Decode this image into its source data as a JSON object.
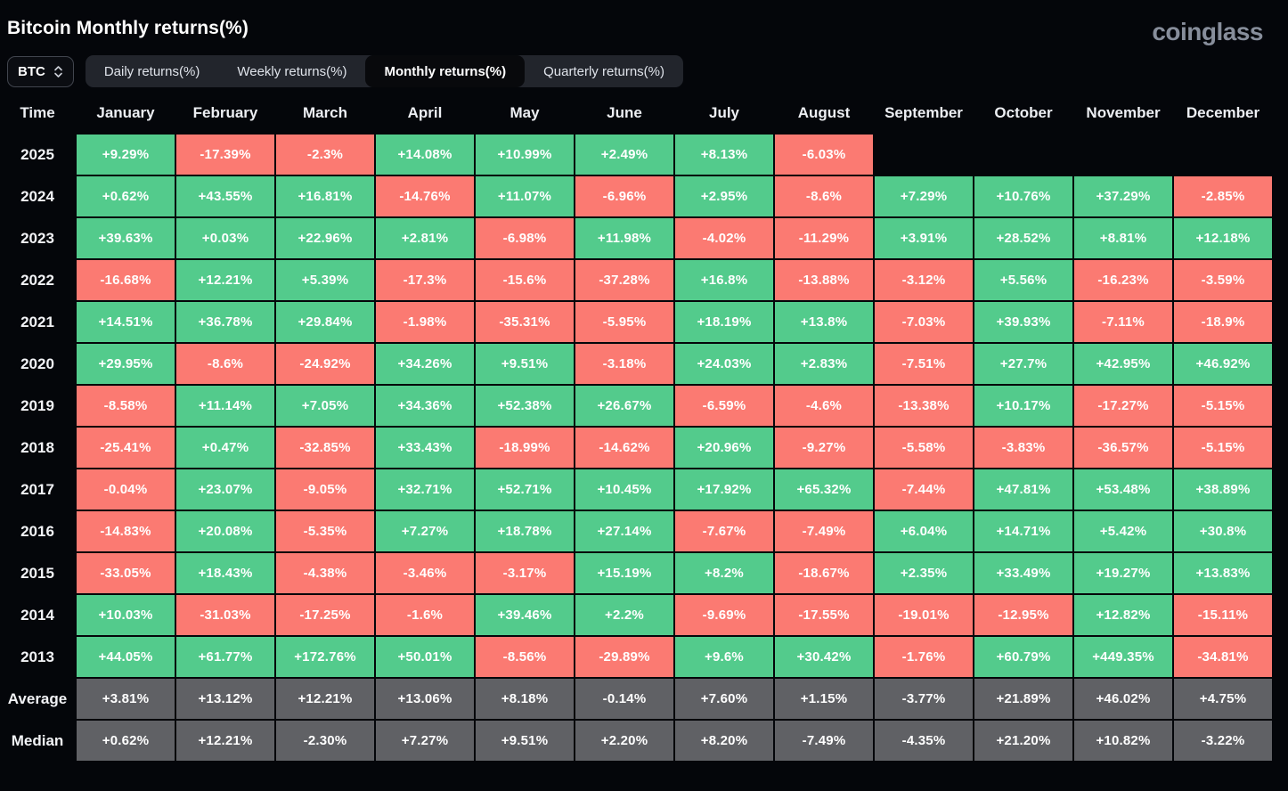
{
  "header": {
    "title": "Bitcoin Monthly returns(%)",
    "logo": "coinglass"
  },
  "controls": {
    "symbol_select": {
      "value": "BTC"
    },
    "tabs": [
      {
        "label": "Daily returns(%)",
        "active": false
      },
      {
        "label": "Weekly returns(%)",
        "active": false
      },
      {
        "label": "Monthly returns(%)",
        "active": true
      },
      {
        "label": "Quarterly returns(%)",
        "active": false
      }
    ]
  },
  "colors": {
    "background": "#04060a",
    "positive": "#53cb8c",
    "negative": "#fb7a72",
    "summary": "#606165"
  },
  "chart_data": {
    "type": "heatmap",
    "title": "Bitcoin Monthly returns(%)",
    "columns": [
      "Time",
      "January",
      "February",
      "March",
      "April",
      "May",
      "June",
      "July",
      "August",
      "September",
      "October",
      "November",
      "December"
    ],
    "rows": [
      {
        "label": "2025",
        "type": "year",
        "values": [
          "+9.29%",
          "-17.39%",
          "-2.3%",
          "+14.08%",
          "+10.99%",
          "+2.49%",
          "+8.13%",
          "-6.03%",
          null,
          null,
          null,
          null
        ]
      },
      {
        "label": "2024",
        "type": "year",
        "values": [
          "+0.62%",
          "+43.55%",
          "+16.81%",
          "-14.76%",
          "+11.07%",
          "-6.96%",
          "+2.95%",
          "-8.6%",
          "+7.29%",
          "+10.76%",
          "+37.29%",
          "-2.85%"
        ]
      },
      {
        "label": "2023",
        "type": "year",
        "values": [
          "+39.63%",
          "+0.03%",
          "+22.96%",
          "+2.81%",
          "-6.98%",
          "+11.98%",
          "-4.02%",
          "-11.29%",
          "+3.91%",
          "+28.52%",
          "+8.81%",
          "+12.18%"
        ]
      },
      {
        "label": "2022",
        "type": "year",
        "values": [
          "-16.68%",
          "+12.21%",
          "+5.39%",
          "-17.3%",
          "-15.6%",
          "-37.28%",
          "+16.8%",
          "-13.88%",
          "-3.12%",
          "+5.56%",
          "-16.23%",
          "-3.59%"
        ]
      },
      {
        "label": "2021",
        "type": "year",
        "values": [
          "+14.51%",
          "+36.78%",
          "+29.84%",
          "-1.98%",
          "-35.31%",
          "-5.95%",
          "+18.19%",
          "+13.8%",
          "-7.03%",
          "+39.93%",
          "-7.11%",
          "-18.9%"
        ]
      },
      {
        "label": "2020",
        "type": "year",
        "values": [
          "+29.95%",
          "-8.6%",
          "-24.92%",
          "+34.26%",
          "+9.51%",
          "-3.18%",
          "+24.03%",
          "+2.83%",
          "-7.51%",
          "+27.7%",
          "+42.95%",
          "+46.92%"
        ]
      },
      {
        "label": "2019",
        "type": "year",
        "values": [
          "-8.58%",
          "+11.14%",
          "+7.05%",
          "+34.36%",
          "+52.38%",
          "+26.67%",
          "-6.59%",
          "-4.6%",
          "-13.38%",
          "+10.17%",
          "-17.27%",
          "-5.15%"
        ]
      },
      {
        "label": "2018",
        "type": "year",
        "values": [
          "-25.41%",
          "+0.47%",
          "-32.85%",
          "+33.43%",
          "-18.99%",
          "-14.62%",
          "+20.96%",
          "-9.27%",
          "-5.58%",
          "-3.83%",
          "-36.57%",
          "-5.15%"
        ]
      },
      {
        "label": "2017",
        "type": "year",
        "values": [
          "-0.04%",
          "+23.07%",
          "-9.05%",
          "+32.71%",
          "+52.71%",
          "+10.45%",
          "+17.92%",
          "+65.32%",
          "-7.44%",
          "+47.81%",
          "+53.48%",
          "+38.89%"
        ]
      },
      {
        "label": "2016",
        "type": "year",
        "values": [
          "-14.83%",
          "+20.08%",
          "-5.35%",
          "+7.27%",
          "+18.78%",
          "+27.14%",
          "-7.67%",
          "-7.49%",
          "+6.04%",
          "+14.71%",
          "+5.42%",
          "+30.8%"
        ]
      },
      {
        "label": "2015",
        "type": "year",
        "values": [
          "-33.05%",
          "+18.43%",
          "-4.38%",
          "-3.46%",
          "-3.17%",
          "+15.19%",
          "+8.2%",
          "-18.67%",
          "+2.35%",
          "+33.49%",
          "+19.27%",
          "+13.83%"
        ]
      },
      {
        "label": "2014",
        "type": "year",
        "values": [
          "+10.03%",
          "-31.03%",
          "-17.25%",
          "-1.6%",
          "+39.46%",
          "+2.2%",
          "-9.69%",
          "-17.55%",
          "-19.01%",
          "-12.95%",
          "+12.82%",
          "-15.11%"
        ]
      },
      {
        "label": "2013",
        "type": "year",
        "values": [
          "+44.05%",
          "+61.77%",
          "+172.76%",
          "+50.01%",
          "-8.56%",
          "-29.89%",
          "+9.6%",
          "+30.42%",
          "-1.76%",
          "+60.79%",
          "+449.35%",
          "-34.81%"
        ]
      },
      {
        "label": "Average",
        "type": "summary",
        "values": [
          "+3.81%",
          "+13.12%",
          "+12.21%",
          "+13.06%",
          "+8.18%",
          "-0.14%",
          "+7.60%",
          "+1.15%",
          "-3.77%",
          "+21.89%",
          "+46.02%",
          "+4.75%"
        ]
      },
      {
        "label": "Median",
        "type": "summary",
        "values": [
          "+0.62%",
          "+12.21%",
          "-2.30%",
          "+7.27%",
          "+9.51%",
          "+2.20%",
          "+8.20%",
          "-7.49%",
          "-4.35%",
          "+21.20%",
          "+10.82%",
          "-3.22%"
        ]
      }
    ]
  }
}
